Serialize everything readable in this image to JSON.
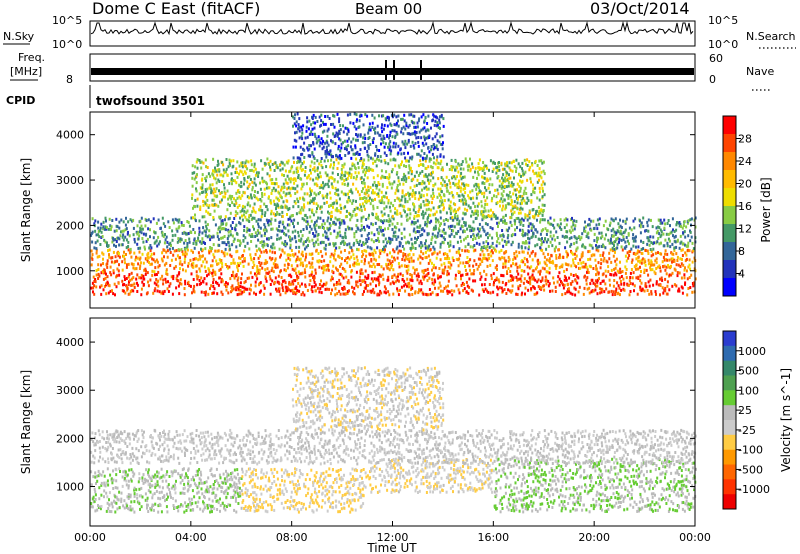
{
  "header": {
    "title": "Dome C East (fitACF)",
    "beam": "Beam 00",
    "date": "03/Oct/2014"
  },
  "panels": {
    "nsky": {
      "label": "N.Sky",
      "left_top": "10^5",
      "left_bottom": "10^0",
      "right_top": "10^5",
      "right_bottom": "10^0",
      "right_label": "N.Search"
    },
    "freq": {
      "label_line1": "Freq.",
      "label_line2": "[MHz]",
      "left_top": "",
      "left_bottom": "8",
      "right_top": "60",
      "right_bottom": "0",
      "right_label": "Nave"
    },
    "cpid": {
      "label": "CPID",
      "text": "twofsound  3501"
    }
  },
  "colorbars": {
    "power": {
      "label": "Power [dB]",
      "ticks": [
        "28",
        "24",
        "20",
        "16",
        "12",
        "8",
        "4"
      ],
      "colors": [
        "#ff0000",
        "#ff4400",
        "#ff8800",
        "#ffbb00",
        "#eedd00",
        "#88cc44",
        "#449966",
        "#336699",
        "#2233bb",
        "#0000ff"
      ]
    },
    "velocity": {
      "label": "Velocity [m s^-1]",
      "ticks": [
        "1000",
        "500",
        "100",
        "25",
        "-25",
        "-100",
        "-500",
        "-1000"
      ],
      "colors": [
        "#2a3ccf",
        "#2e6bb0",
        "#35886a",
        "#4ea050",
        "#66cc33",
        "#bbbbbb",
        "#cccccc",
        "#ffcc44",
        "#ff9900",
        "#ff6600",
        "#ff3300",
        "#ee0000"
      ]
    }
  },
  "chart_data": [
    {
      "type": "heatmap",
      "title": "Power",
      "xlabel": "Time UT",
      "ylabel": "Slant Range [km]",
      "xticks": [
        "00:00",
        "04:00",
        "08:00",
        "12:00",
        "16:00",
        "20:00",
        "00:00"
      ],
      "yticks": [
        "1000",
        "2000",
        "3000",
        "4000"
      ],
      "xlim": [
        0,
        24
      ],
      "ylim": [
        180,
        4500
      ],
      "legend": "right colorbar",
      "color_range": [
        0,
        30
      ],
      "bands": [
        {
          "t_start": 0,
          "t_end": 24,
          "r_low": 500,
          "r_high": 1000,
          "value": 26
        },
        {
          "t_start": 0,
          "t_end": 24,
          "r_low": 1000,
          "r_high": 1500,
          "value": 22
        },
        {
          "t_start": 0,
          "t_end": 24,
          "r_low": 1500,
          "r_high": 2200,
          "value": 10
        },
        {
          "t_start": 4,
          "t_end": 18,
          "r_low": 2200,
          "r_high": 3500,
          "value": 14
        },
        {
          "t_start": 8,
          "t_end": 14,
          "r_low": 3500,
          "r_high": 4500,
          "value": 6
        }
      ]
    },
    {
      "type": "heatmap",
      "title": "Velocity",
      "xlabel": "Time UT",
      "ylabel": "Slant Range [km]",
      "xticks": [
        "00:00",
        "04:00",
        "08:00",
        "12:00",
        "16:00",
        "20:00",
        "00:00"
      ],
      "yticks": [
        "1000",
        "2000",
        "3000",
        "4000"
      ],
      "xlim": [
        0,
        24
      ],
      "ylim": [
        180,
        4500
      ],
      "legend": "right colorbar",
      "color_range": [
        -1000,
        1000
      ],
      "bands": [
        {
          "t_start": 0,
          "t_end": 6,
          "r_low": 500,
          "r_high": 1400,
          "value": 120
        },
        {
          "t_start": 6,
          "t_end": 11,
          "r_low": 500,
          "r_high": 1400,
          "value": -180
        },
        {
          "t_start": 11,
          "t_end": 16,
          "r_low": 900,
          "r_high": 1600,
          "value": -120
        },
        {
          "t_start": 16,
          "t_end": 24,
          "r_low": 500,
          "r_high": 1600,
          "value": 150
        },
        {
          "t_start": 0,
          "t_end": 24,
          "r_low": 1500,
          "r_high": 2200,
          "value": 0
        },
        {
          "t_start": 8,
          "t_end": 14,
          "r_low": 2200,
          "r_high": 3500,
          "value": -90
        }
      ]
    }
  ]
}
